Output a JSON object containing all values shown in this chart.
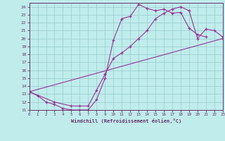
{
  "xlabel": "Windchill (Refroidissement éolien,°C)",
  "bg_color": "#c0ecec",
  "line_color": "#993399",
  "grid_color": "#99cccc",
  "axis_color": "#663366",
  "tick_color": "#663366",
  "xlim": [
    0,
    23
  ],
  "ylim": [
    11,
    24.5
  ],
  "xticks": [
    0,
    1,
    2,
    3,
    4,
    5,
    6,
    7,
    8,
    9,
    10,
    11,
    12,
    13,
    14,
    15,
    16,
    17,
    18,
    19,
    20,
    21,
    22,
    23
  ],
  "yticks": [
    11,
    12,
    13,
    14,
    15,
    16,
    17,
    18,
    19,
    20,
    21,
    22,
    23,
    24
  ],
  "line1_x": [
    0,
    1,
    2,
    3,
    4,
    5,
    6,
    7,
    8,
    9,
    10,
    11,
    12,
    13,
    14,
    15,
    16,
    17,
    18,
    19,
    20,
    21
  ],
  "line1_y": [
    13.3,
    12.8,
    12.0,
    11.7,
    11.2,
    11.0,
    11.0,
    11.0,
    12.3,
    15.0,
    19.8,
    22.5,
    22.8,
    24.3,
    23.8,
    23.5,
    23.7,
    23.2,
    23.3,
    21.3,
    20.5,
    20.2
  ],
  "line2_x": [
    0,
    3,
    5,
    6,
    7,
    8,
    9,
    10,
    11,
    12,
    13,
    14,
    15,
    16,
    17,
    18,
    19,
    20,
    21,
    22,
    23
  ],
  "line2_y": [
    13.3,
    12.0,
    11.5,
    11.5,
    11.5,
    13.5,
    15.5,
    17.5,
    18.2,
    19.0,
    20.0,
    21.0,
    22.5,
    23.2,
    23.7,
    24.0,
    23.5,
    20.0,
    21.2,
    21.0,
    20.2
  ],
  "line3_x": [
    0,
    23
  ],
  "line3_y": [
    13.3,
    20.0
  ]
}
